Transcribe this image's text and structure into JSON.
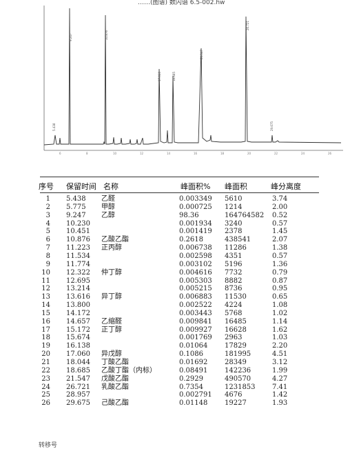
{
  "header_title": "……(图谱) 数闪谱 6.5-002.hw",
  "columns": {
    "no": "序号",
    "rt": "保留时间",
    "name": "名称",
    "area_pct": "峰面积%",
    "area": "峰面积",
    "resolution": "峰分离度"
  },
  "rows": [
    {
      "no": "1",
      "rt": "5.438",
      "name": "乙醛",
      "area_pct": "0.003349",
      "area": "5610",
      "res": "3.74"
    },
    {
      "no": "2",
      "rt": "5.775",
      "name": "甲醇",
      "area_pct": "0.000725",
      "area": "1214",
      "res": "2.00"
    },
    {
      "no": "3",
      "rt": "9.247",
      "name": "乙醇",
      "area_pct": "98.36",
      "area": "164764582",
      "res": "0.52"
    },
    {
      "no": "4",
      "rt": "10.230",
      "name": "",
      "area_pct": "0.001934",
      "area": "3240",
      "res": "0.57"
    },
    {
      "no": "5",
      "rt": "10.451",
      "name": "",
      "area_pct": "0.001419",
      "area": "2378",
      "res": "1.45"
    },
    {
      "no": "6",
      "rt": "10.876",
      "name": "乙酸乙酯",
      "area_pct": "0.2618",
      "area": "438541",
      "res": "2.07"
    },
    {
      "no": "7",
      "rt": "11.223",
      "name": "正丙醇",
      "area_pct": "0.006738",
      "area": "11286",
      "res": "1.38"
    },
    {
      "no": "8",
      "rt": "11.534",
      "name": "",
      "area_pct": "0.002598",
      "area": "4351",
      "res": "0.57"
    },
    {
      "no": "9",
      "rt": "11.774",
      "name": "",
      "area_pct": "0.003102",
      "area": "5196",
      "res": "1.36"
    },
    {
      "no": "10",
      "rt": "12.322",
      "name": "仲丁醇",
      "area_pct": "0.004616",
      "area": "7732",
      "res": "0.79"
    },
    {
      "no": "11",
      "rt": "12.695",
      "name": "",
      "area_pct": "0.005303",
      "area": "8882",
      "res": "0.87"
    },
    {
      "no": "12",
      "rt": "13.214",
      "name": "",
      "area_pct": "0.005215",
      "area": "8736",
      "res": "0.95"
    },
    {
      "no": "13",
      "rt": "13.616",
      "name": "异丁醇",
      "area_pct": "0.006883",
      "area": "11530",
      "res": "0.65"
    },
    {
      "no": "14",
      "rt": "13.800",
      "name": "",
      "area_pct": "0.002522",
      "area": "4224",
      "res": "1.08"
    },
    {
      "no": "15",
      "rt": "14.172",
      "name": "",
      "area_pct": "0.003443",
      "area": "5768",
      "res": "1.02"
    },
    {
      "no": "16",
      "rt": "14.657",
      "name": "乙缩醛",
      "area_pct": "0.009841",
      "area": "16485",
      "res": "1.14"
    },
    {
      "no": "17",
      "rt": "15.172",
      "name": "正丁醇",
      "area_pct": "0.009927",
      "area": "16628",
      "res": "1.62"
    },
    {
      "no": "18",
      "rt": "15.674",
      "name": "",
      "area_pct": "0.001769",
      "area": "2963",
      "res": "1.03"
    },
    {
      "no": "19",
      "rt": "16.138",
      "name": "",
      "area_pct": "0.01064",
      "area": "17829",
      "res": "2.20"
    },
    {
      "no": "20",
      "rt": "17.060",
      "name": "异戊醇",
      "area_pct": "0.1086",
      "area": "181995",
      "res": "4.51"
    },
    {
      "no": "21",
      "rt": "18.044",
      "name": "丁酸乙酯",
      "area_pct": "0.01692",
      "area": "28349",
      "res": "3.12"
    },
    {
      "no": "22",
      "rt": "18.685",
      "name": "乙酸丁酯（内标）",
      "area_pct": "0.08491",
      "area": "142236",
      "res": "1.99"
    },
    {
      "no": "23",
      "rt": "21.547",
      "name": "戊酸乙酯",
      "area_pct": "0.2929",
      "area": "490570",
      "res": "4.27"
    },
    {
      "no": "24",
      "rt": "26.721",
      "name": "乳酸乙酯",
      "area_pct": "0.7354",
      "area": "1231853",
      "res": "7.41"
    },
    {
      "no": "25",
      "rt": "28.957",
      "name": "",
      "area_pct": "0.002791",
      "area": "4676",
      "res": "1.42"
    },
    {
      "no": "26",
      "rt": "29.675",
      "name": "己酸乙酯",
      "area_pct": "0.01148",
      "area": "19227",
      "res": "1.93"
    }
  ],
  "footer": "转移号"
}
